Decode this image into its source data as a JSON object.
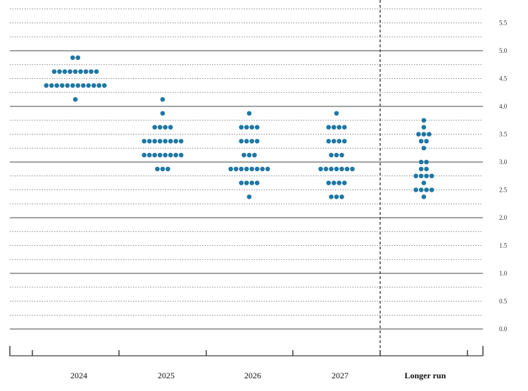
{
  "chart_data": {
    "type": "scatter",
    "title": "",
    "xlabel": "",
    "ylabel": "",
    "categories": [
      "2024",
      "2025",
      "2026",
      "2027",
      "Longer run"
    ],
    "ylim": [
      0,
      5.875
    ],
    "y_ticks": [
      "0.0",
      "0.5",
      "1.0",
      "1.5",
      "2.0",
      "2.5",
      "3.0",
      "3.5",
      "4.0",
      "4.5",
      "5.0",
      "5.5"
    ],
    "grid": "horizontal lines every 0.25; solid at whole numbers, dotted otherwise",
    "dot_color": "#1f77a4",
    "series": [
      {
        "category": "2024",
        "points": [
          {
            "y": 4.875,
            "count": 2
          },
          {
            "y": 4.625,
            "count": 9
          },
          {
            "y": 4.375,
            "count": 12
          },
          {
            "y": 4.125,
            "count": 1
          }
        ]
      },
      {
        "category": "2025",
        "points": [
          {
            "y": 4.125,
            "count": 1
          },
          {
            "y": 3.875,
            "count": 1
          },
          {
            "y": 3.625,
            "count": 4
          },
          {
            "y": 3.375,
            "count": 8
          },
          {
            "y": 3.125,
            "count": 8
          },
          {
            "y": 2.875,
            "count": 3
          }
        ]
      },
      {
        "category": "2026",
        "points": [
          {
            "y": 3.875,
            "count": 1
          },
          {
            "y": 3.625,
            "count": 4
          },
          {
            "y": 3.375,
            "count": 4
          },
          {
            "y": 3.125,
            "count": 3
          },
          {
            "y": 2.875,
            "count": 8
          },
          {
            "y": 2.625,
            "count": 4
          },
          {
            "y": 2.375,
            "count": 1
          }
        ]
      },
      {
        "category": "2027",
        "points": [
          {
            "y": 3.875,
            "count": 1
          },
          {
            "y": 3.625,
            "count": 4
          },
          {
            "y": 3.375,
            "count": 4
          },
          {
            "y": 3.125,
            "count": 3
          },
          {
            "y": 2.875,
            "count": 7
          },
          {
            "y": 2.625,
            "count": 4
          },
          {
            "y": 2.375,
            "count": 3
          }
        ]
      },
      {
        "category": "Longer run",
        "points": [
          {
            "y": 3.75,
            "count": 1
          },
          {
            "y": 3.625,
            "count": 1
          },
          {
            "y": 3.5,
            "count": 3
          },
          {
            "y": 3.375,
            "count": 2
          },
          {
            "y": 3.25,
            "count": 1
          },
          {
            "y": 3.0,
            "count": 2
          },
          {
            "y": 2.875,
            "count": 2
          },
          {
            "y": 2.75,
            "count": 4
          },
          {
            "y": 2.625,
            "count": 1
          },
          {
            "y": 2.5,
            "count": 4
          },
          {
            "y": 2.375,
            "count": 1
          }
        ]
      }
    ]
  }
}
